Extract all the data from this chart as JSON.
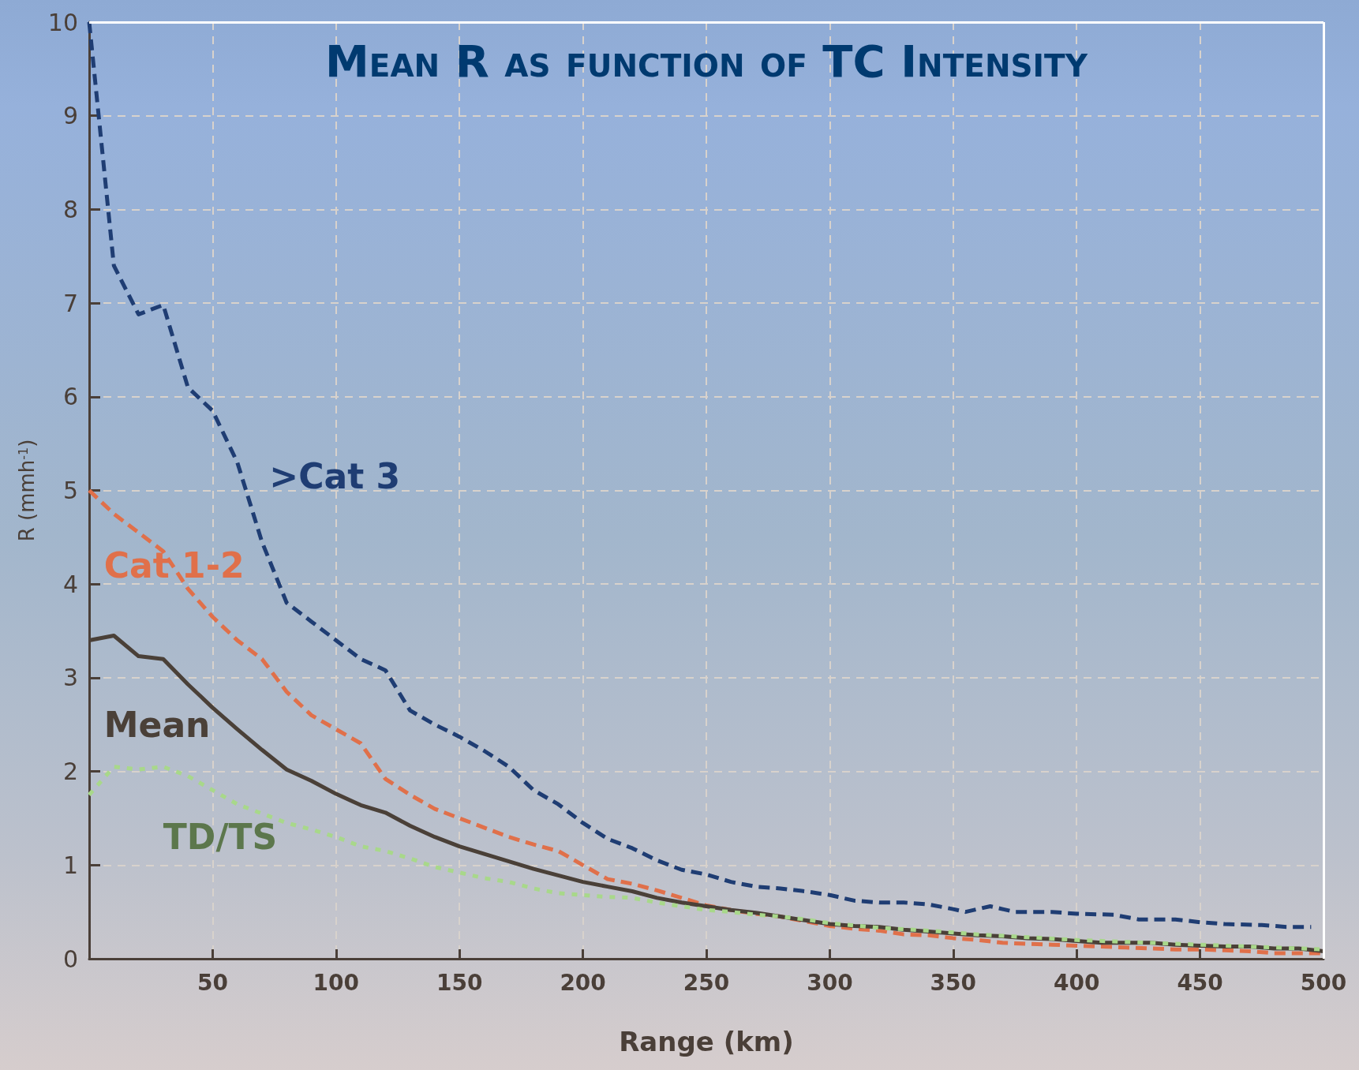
{
  "chart_data": {
    "type": "line",
    "title": "Mean R as function of TC Intensity",
    "xlabel": "Range (km)",
    "ylabel": "R (mmh$^{-1}$)",
    "xlim": [
      0,
      500
    ],
    "xticks": [
      50,
      100,
      150,
      200,
      250,
      300,
      350,
      400,
      450,
      500
    ],
    "ylim": [
      0,
      10
    ],
    "yticks": [
      0,
      1,
      2,
      3,
      4,
      5,
      6,
      7,
      8,
      9,
      10
    ],
    "grid": true,
    "marker": "none",
    "series": [
      {
        "name": ">Cat 3",
        "color": "#1f3d73",
        "line_style": "dashed",
        "x": [
          0,
          10,
          20,
          30,
          40,
          50,
          60,
          70,
          80,
          90,
          100,
          110,
          120,
          130,
          140,
          150,
          160,
          170,
          180,
          190,
          200,
          210,
          220,
          230,
          240,
          250,
          260,
          270,
          280,
          290,
          300,
          310,
          320,
          330,
          340,
          350,
          355,
          365,
          375,
          390,
          400,
          415,
          425,
          440,
          450,
          460,
          475,
          485,
          495
        ],
        "values": [
          10.0,
          7.4,
          6.88,
          6.98,
          6.1,
          5.85,
          5.3,
          4.45,
          3.8,
          3.6,
          3.4,
          3.2,
          3.08,
          2.65,
          2.5,
          2.37,
          2.22,
          2.05,
          1.8,
          1.65,
          1.45,
          1.28,
          1.18,
          1.05,
          0.95,
          0.9,
          0.82,
          0.77,
          0.75,
          0.72,
          0.68,
          0.62,
          0.6,
          0.6,
          0.58,
          0.53,
          0.5,
          0.56,
          0.5,
          0.5,
          0.48,
          0.47,
          0.42,
          0.42,
          0.39,
          0.37,
          0.36,
          0.34,
          0.34
        ]
      },
      {
        "name": "Cat 1-2",
        "color": "#e0704a",
        "line_style": "dashed",
        "x": [
          0,
          10,
          20,
          30,
          40,
          50,
          60,
          70,
          80,
          90,
          100,
          110,
          120,
          130,
          140,
          150,
          160,
          170,
          180,
          190,
          200,
          210,
          220,
          230,
          240,
          250,
          260,
          270,
          280,
          290,
          300,
          310,
          320,
          330,
          340,
          350,
          360,
          370,
          380,
          390,
          400,
          410,
          420,
          430,
          440,
          450,
          460,
          470,
          480,
          490,
          500
        ],
        "values": [
          5.0,
          4.75,
          4.55,
          4.35,
          3.95,
          3.65,
          3.4,
          3.2,
          2.85,
          2.6,
          2.45,
          2.3,
          1.92,
          1.75,
          1.6,
          1.5,
          1.4,
          1.3,
          1.22,
          1.15,
          1.0,
          0.85,
          0.8,
          0.73,
          0.65,
          0.57,
          0.52,
          0.48,
          0.45,
          0.4,
          0.35,
          0.32,
          0.3,
          0.26,
          0.25,
          0.22,
          0.2,
          0.17,
          0.16,
          0.15,
          0.14,
          0.13,
          0.12,
          0.11,
          0.1,
          0.1,
          0.09,
          0.08,
          0.06,
          0.06,
          0.06
        ]
      },
      {
        "name": "Mean",
        "color": "#4a4038",
        "line_style": "solid",
        "x": [
          0,
          10,
          20,
          30,
          40,
          50,
          60,
          70,
          80,
          90,
          100,
          110,
          120,
          130,
          140,
          150,
          160,
          170,
          180,
          190,
          200,
          210,
          220,
          230,
          240,
          250,
          260,
          270,
          280,
          290,
          300,
          310,
          320,
          330,
          340,
          350,
          360,
          370,
          380,
          390,
          400,
          410,
          420,
          430,
          440,
          450,
          460,
          470,
          480,
          490,
          500
        ],
        "values": [
          3.4,
          3.45,
          3.23,
          3.2,
          2.93,
          2.68,
          2.45,
          2.23,
          2.02,
          1.9,
          1.76,
          1.64,
          1.56,
          1.42,
          1.3,
          1.2,
          1.12,
          1.04,
          0.96,
          0.89,
          0.82,
          0.77,
          0.72,
          0.65,
          0.6,
          0.56,
          0.52,
          0.49,
          0.45,
          0.41,
          0.37,
          0.35,
          0.34,
          0.31,
          0.29,
          0.27,
          0.25,
          0.24,
          0.22,
          0.21,
          0.19,
          0.17,
          0.17,
          0.17,
          0.15,
          0.14,
          0.13,
          0.13,
          0.11,
          0.11,
          0.08
        ]
      },
      {
        "name": "TD/TS",
        "color": "#a8d88a",
        "line_style": "dotted",
        "x": [
          0,
          10,
          20,
          30,
          40,
          50,
          60,
          70,
          80,
          90,
          100,
          110,
          120,
          130,
          140,
          150,
          160,
          170,
          180,
          190,
          200,
          210,
          220,
          230,
          240,
          250,
          260,
          270,
          280,
          290,
          300,
          320,
          340,
          360,
          380,
          400,
          420,
          440,
          460,
          480,
          500
        ],
        "values": [
          1.75,
          2.05,
          2.02,
          2.05,
          1.95,
          1.8,
          1.65,
          1.55,
          1.45,
          1.38,
          1.3,
          1.2,
          1.15,
          1.07,
          0.98,
          0.92,
          0.86,
          0.82,
          0.75,
          0.7,
          0.68,
          0.66,
          0.65,
          0.6,
          0.56,
          0.52,
          0.5,
          0.47,
          0.45,
          0.42,
          0.38,
          0.33,
          0.3,
          0.26,
          0.23,
          0.2,
          0.18,
          0.16,
          0.14,
          0.12,
          0.1
        ]
      }
    ]
  }
}
